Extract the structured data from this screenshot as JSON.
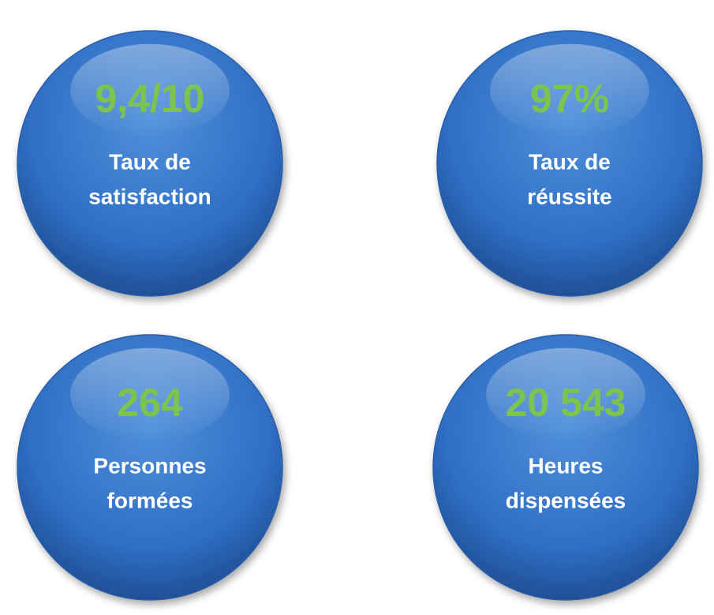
{
  "stats": [
    {
      "value": "9,4/10",
      "label": [
        "Taux de",
        "satisfaction"
      ]
    },
    {
      "value": "97%",
      "label": [
        "Taux de",
        "réussite"
      ]
    },
    {
      "value": "264",
      "label": [
        "Personnes",
        "formées"
      ]
    },
    {
      "value": "20 543",
      "label": [
        "Heures",
        "dispensées"
      ]
    }
  ]
}
